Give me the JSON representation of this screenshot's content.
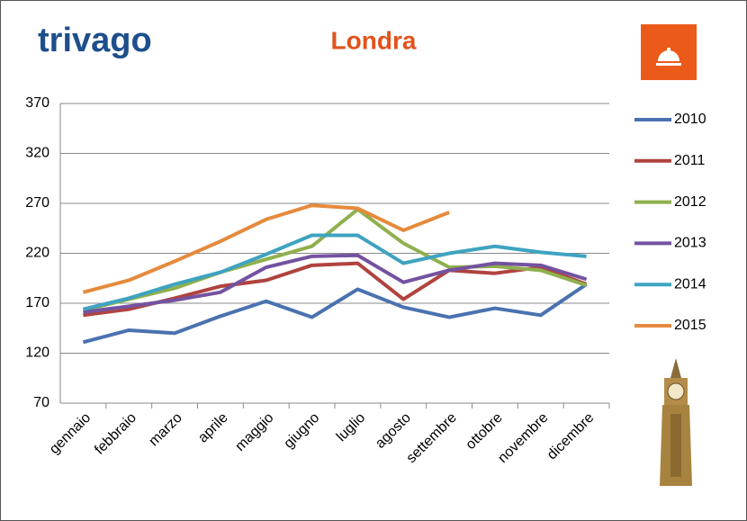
{
  "logo": "trivago",
  "chart_data": {
    "type": "line",
    "title": "Londra",
    "categories": [
      "gennaio",
      "febbraio",
      "marzo",
      "aprile",
      "maggio",
      "giugno",
      "luglio",
      "agosto",
      "settembre",
      "ottobre",
      "novembre",
      "dicembre"
    ],
    "series": [
      {
        "name": "2010",
        "color": "#4a72b0",
        "values": [
          131,
          143,
          140,
          157,
          172,
          156,
          184,
          166,
          156,
          165,
          158,
          189
        ]
      },
      {
        "name": "2011",
        "color": "#b0433f",
        "values": [
          158,
          164,
          175,
          187,
          193,
          208,
          210,
          174,
          203,
          200,
          206,
          189
        ]
      },
      {
        "name": "2012",
        "color": "#8fb04e",
        "values": [
          163,
          174,
          185,
          201,
          214,
          227,
          264,
          230,
          206,
          207,
          203,
          188
        ]
      },
      {
        "name": "2013",
        "color": "#7452a0",
        "values": [
          161,
          167,
          173,
          181,
          206,
          217,
          218,
          191,
          203,
          210,
          208,
          194
        ]
      },
      {
        "name": "2014",
        "color": "#3ea3c0",
        "values": [
          164,
          175,
          189,
          201,
          219,
          238,
          238,
          210,
          220,
          227,
          221,
          217
        ]
      },
      {
        "name": "2015",
        "color": "#e58a3c",
        "values": [
          181,
          193,
          212,
          232,
          254,
          268,
          265,
          243,
          261,
          null,
          null,
          null
        ]
      }
    ],
    "ylim": [
      70,
      370
    ],
    "yticks": [
      70,
      120,
      170,
      220,
      270,
      320,
      370
    ],
    "grid": true,
    "legend": "right"
  }
}
